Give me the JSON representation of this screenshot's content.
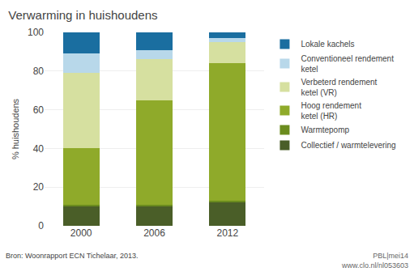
{
  "chart_data": {
    "type": "bar",
    "stacked": true,
    "title": "Verwarming in huishoudens",
    "ylabel": "% huishoudens",
    "categories": [
      "2000",
      "2006",
      "2012"
    ],
    "series": [
      {
        "name": "Collectief / warmtelevering",
        "color": "#4a5e28",
        "values": [
          10,
          10,
          12
        ]
      },
      {
        "name": "Warmtepomp",
        "color": "#6b8c1e",
        "values": [
          1,
          1,
          1
        ]
      },
      {
        "name": "Hoog rendement\nketel (HR)",
        "color": "#8faa2a",
        "values": [
          29,
          54,
          71
        ]
      },
      {
        "name": "Verbeterd rendement\nketel (VR)",
        "color": "#d6e0a0",
        "values": [
          39,
          21,
          11
        ]
      },
      {
        "name": "Conventioneel rendement\nketel",
        "color": "#b8d8ea",
        "values": [
          10,
          5,
          2
        ]
      },
      {
        "name": "Lokale kachels",
        "color": "#1a6ea0",
        "values": [
          11,
          9,
          3
        ]
      }
    ],
    "ylim": [
      0,
      100
    ],
    "yticks": [
      0,
      20,
      40,
      60,
      80,
      100
    ],
    "grid": true,
    "legend": "right",
    "annotations": [
      "Bron: Woonrapport ECN Tichelaar, 2013.",
      "PBL|mei14\nwww.clo.nl/nl053603"
    ]
  }
}
